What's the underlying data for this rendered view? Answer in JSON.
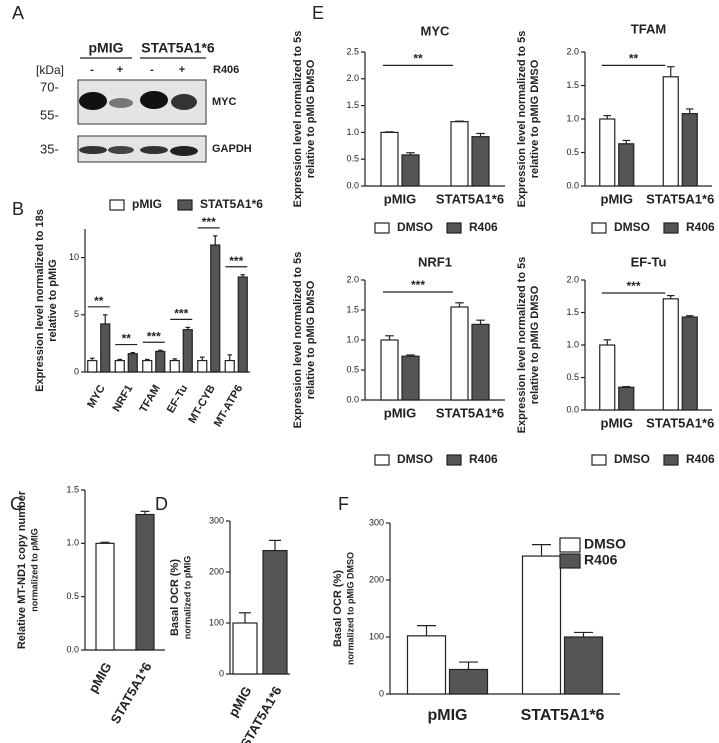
{
  "blot": {
    "panel": "A",
    "groups": [
      "pMIG",
      "STAT5A1*6"
    ],
    "unit": "[kDa]",
    "treatment": "R406",
    "lanes": [
      "-",
      "+",
      "-",
      "+"
    ],
    "markers": [
      "70-",
      "55-",
      "35-"
    ],
    "proteins": [
      "MYC",
      "GAPDH"
    ]
  },
  "chart_data": [
    {
      "type": "bar",
      "panel": "B",
      "ylabel": [
        "Expression level normalized to 18s",
        "relative to pMIG"
      ],
      "legend": "top",
      "categories": [
        "MYC",
        "NRF1",
        "TFAM",
        "EF-Tu",
        "MT-CYB",
        "MT-ATP6"
      ],
      "series": [
        {
          "name": "pMIG",
          "color": "#ffffff",
          "values": [
            1,
            1,
            1,
            1,
            1,
            1
          ],
          "errors": [
            0.2,
            0.1,
            0.1,
            0.15,
            0.3,
            0.5
          ]
        },
        {
          "name": "STAT5A1*6",
          "color": "#555555",
          "values": [
            4.2,
            1.6,
            1.8,
            3.7,
            11.1,
            8.3
          ],
          "errors": [
            0.8,
            0.1,
            0.1,
            0.2,
            0.8,
            0.2
          ]
        }
      ],
      "annotations": [
        "**",
        "**",
        "***",
        "***",
        "***",
        "***"
      ],
      "ylim": [
        0,
        12.5
      ],
      "yticks": [
        0,
        5,
        10
      ]
    },
    {
      "type": "bar",
      "panel": "E",
      "title": "MYC",
      "ylabel": [
        "Expression level normalized to 5s",
        "relative to pMIG DMSO"
      ],
      "legend": "bottom",
      "categories": [
        "pMIG",
        "STAT5A1*6"
      ],
      "series": [
        {
          "name": "DMSO",
          "color": "#ffffff",
          "values": [
            1.0,
            1.2
          ],
          "errors": [
            0.01,
            0.01
          ]
        },
        {
          "name": "R406",
          "color": "#555555",
          "values": [
            0.58,
            0.92
          ],
          "errors": [
            0.04,
            0.06
          ]
        }
      ],
      "annotation": "**",
      "ylim": [
        0,
        2.5
      ],
      "yticks": [
        {
          "value": 0,
          "label": "0.0"
        },
        0.5,
        {
          "value": 1,
          "label": "1.0"
        },
        1.5,
        {
          "value": 2,
          "label": "2.0"
        },
        2.5
      ]
    },
    {
      "type": "bar",
      "title": "TFAM",
      "ylabel": [
        "Expression level normalized to 5s",
        "relative to pMIG DMSO"
      ],
      "legend": "bottom",
      "categories": [
        "pMIG",
        "STAT5A1*6"
      ],
      "series": [
        {
          "name": "DMSO",
          "color": "#ffffff",
          "values": [
            1.0,
            1.63
          ],
          "errors": [
            0.05,
            0.15
          ]
        },
        {
          "name": "R406",
          "color": "#555555",
          "values": [
            0.63,
            1.08
          ],
          "errors": [
            0.05,
            0.07
          ]
        }
      ],
      "annotation": "**",
      "ylim": [
        0,
        2
      ],
      "yticks": [
        {
          "value": 0,
          "label": "0.0"
        },
        0.5,
        {
          "value": 1,
          "label": "1.0"
        },
        1.5,
        {
          "value": 2,
          "label": "2.0"
        }
      ]
    },
    {
      "type": "bar",
      "title": "NRF1",
      "ylabel": [
        "Expression level normalized to 5s",
        "relative to pMIG DMSO"
      ],
      "legend": "bottom",
      "categories": [
        "pMIG",
        "STAT5A1*6"
      ],
      "series": [
        {
          "name": "DMSO",
          "color": "#ffffff",
          "values": [
            1.0,
            1.55
          ],
          "errors": [
            0.07,
            0.07
          ]
        },
        {
          "name": "R406",
          "color": "#555555",
          "values": [
            0.73,
            1.26
          ],
          "errors": [
            0.02,
            0.07
          ]
        }
      ],
      "annotation": "***",
      "ylim": [
        0,
        2
      ],
      "yticks": [
        {
          "value": 0,
          "label": "0.0"
        },
        0.5,
        {
          "value": 1,
          "label": "1.0"
        },
        1.5,
        {
          "value": 2,
          "label": "2.0"
        }
      ]
    },
    {
      "type": "bar",
      "title": "EF-Tu",
      "ylabel": [
        "Expression level normalized to 5s",
        "relative to pMIG DMSO"
      ],
      "legend": "bottom",
      "categories": [
        "pMIG",
        "STAT5A1*6"
      ],
      "series": [
        {
          "name": "DMSO",
          "color": "#ffffff",
          "values": [
            1.0,
            1.71
          ],
          "errors": [
            0.08,
            0.05
          ]
        },
        {
          "name": "R406",
          "color": "#555555",
          "values": [
            0.35,
            1.43
          ],
          "errors": [
            0.01,
            0.02
          ]
        }
      ],
      "annotation": "***",
      "ylim": [
        0,
        2
      ],
      "yticks": [
        {
          "value": 0,
          "label": "0.0"
        },
        0.5,
        {
          "value": 1,
          "label": "1.0"
        },
        1.5,
        {
          "value": 2,
          "label": "2.0"
        }
      ]
    },
    {
      "type": "bar",
      "panel": "C",
      "ylabel": [
        "Relative MT-ND1 copy number",
        "normalized to pMIG"
      ],
      "categories": [
        "pMIG",
        "STAT5A1*6"
      ],
      "values": [
        1.0,
        1.27
      ],
      "errors": [
        0.01,
        0.03
      ],
      "colors": [
        "#ffffff",
        "#555555"
      ],
      "ylim": [
        0,
        1.5
      ],
      "yticks": [
        {
          "value": 0,
          "label": "0.0"
        },
        0.5,
        {
          "value": 1,
          "label": "1.0"
        },
        1.5
      ]
    },
    {
      "type": "bar",
      "panel": "D",
      "ylabel": [
        "Basal OCR (%)",
        "normalized to pMIG"
      ],
      "categories": [
        "pMIG",
        "STAT5A1*6"
      ],
      "values": [
        100,
        242
      ],
      "errors": [
        20,
        20
      ],
      "colors": [
        "#ffffff",
        "#555555"
      ],
      "ylim": [
        0,
        300
      ],
      "yticks": [
        0,
        100,
        200,
        300
      ]
    },
    {
      "type": "bar",
      "panel": "F",
      "ylabel": [
        "Basal OCR (%)",
        "normalized to pMIG DMSO"
      ],
      "legend": "right",
      "categories": [
        "pMIG",
        "STAT5A1*6"
      ],
      "series": [
        {
          "name": "DMSO",
          "color": "#ffffff",
          "values": [
            102,
            242
          ],
          "errors": [
            18,
            20
          ]
        },
        {
          "name": "R406",
          "color": "#555555",
          "values": [
            43,
            100
          ],
          "errors": [
            13,
            8
          ]
        }
      ],
      "ylim": [
        0,
        300
      ],
      "yticks": [
        0,
        100,
        200,
        300
      ]
    }
  ]
}
